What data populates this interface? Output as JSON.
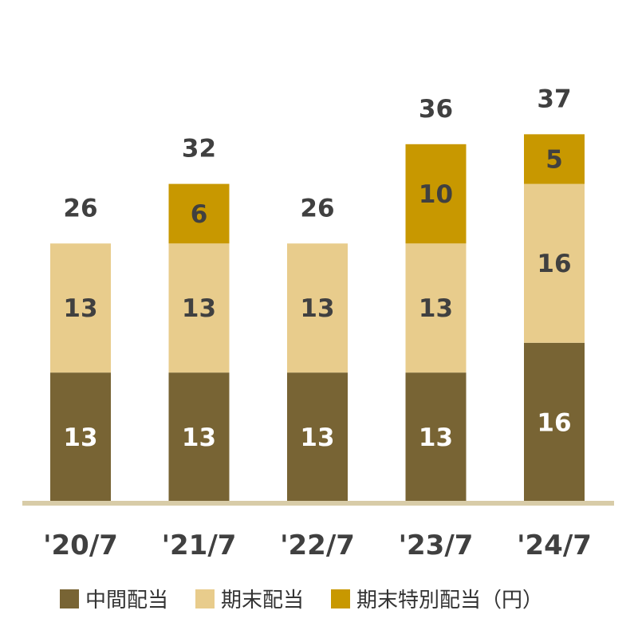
{
  "chart_data": {
    "type": "bar",
    "stacked": true,
    "title": "",
    "xlabel": "",
    "ylabel": "",
    "unit": "（円）",
    "ylim": [
      0,
      40
    ],
    "categories": [
      "'20/7",
      "'21/7",
      "'22/7",
      "'23/7",
      "'24/7"
    ],
    "totals": [
      26,
      32,
      26,
      36,
      37
    ],
    "series": [
      {
        "name": "中間配当",
        "values": [
          13,
          13,
          13,
          13,
          16
        ],
        "color": "#786434",
        "label_color": "#ffffff"
      },
      {
        "name": "期末配当",
        "values": [
          13,
          13,
          13,
          13,
          16
        ],
        "color": "#e8cc8c",
        "label_color": "#404040"
      },
      {
        "name": "期末特別配当",
        "values": [
          0,
          6,
          0,
          10,
          5
        ],
        "color": "#c89800",
        "label_color": "#404040"
      }
    ],
    "axis_line_color": "#d8cca8",
    "grid": false,
    "legend_position": "bottom"
  }
}
